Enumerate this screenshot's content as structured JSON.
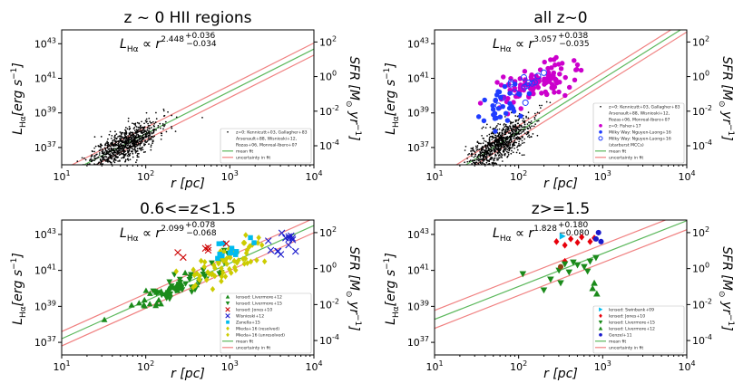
{
  "chart_data": [
    {
      "type": "scatter",
      "title": "z ~ 0 HII regions",
      "relation": {
        "prefix": "L",
        "sub": "Hα",
        "mid": " ∝ r",
        "exp": "2.448",
        "up": "+0.036",
        "down": "−0.034"
      },
      "xlabel": "r [pc]",
      "ylabel": "L_Hα [erg s^-1]",
      "y2label": "SFR [M_⊙ yr^-1]",
      "xlim_log": [
        1,
        4
      ],
      "ylim_log": [
        36,
        43.8
      ],
      "y2_offset_log": -41.1,
      "x_ticks": [
        "10^1",
        "10^2",
        "10^3",
        "10^4"
      ],
      "y_ticks": [
        {
          "v": 37,
          "l": "10^37"
        },
        {
          "v": 39,
          "l": "10^39"
        },
        {
          "v": 41,
          "l": "10^41"
        },
        {
          "v": 43,
          "l": "10^43"
        }
      ],
      "y2_ticks": [
        {
          "v": -4,
          "l": "10^-4"
        },
        {
          "v": -2,
          "l": "10^-2"
        },
        {
          "v": 0,
          "l": "10^0"
        },
        {
          "v": 2,
          "l": "10^2"
        }
      ],
      "fit": {
        "slope": 2.448,
        "intercept": 32.9,
        "band": 0.35
      },
      "clouds": [
        {
          "color": "#000000",
          "marker": "dot",
          "n": 900,
          "x_mu": 1.75,
          "x_sig": 0.2,
          "y_sd": 0.45,
          "seed": 11
        }
      ],
      "legend_location": "lower-right",
      "legend": [
        {
          "label": "z=0: Kennicutt+03, Gallagher+83",
          "color": "#000000",
          "marker": "dot"
        },
        {
          "label": "Arsenault+88, Wisnioski+12,",
          "color": "#000000",
          "marker": "none"
        },
        {
          "label": "Rozas+06, Monreal-Ibero+07",
          "color": "#000000",
          "marker": "none"
        },
        {
          "label": "mean fit",
          "color": "#5cb85c",
          "marker": "line"
        },
        {
          "label": "uncertainty in fit",
          "color": "#f08080",
          "marker": "line"
        }
      ],
      "points": []
    },
    {
      "type": "scatter",
      "title": "all z~0",
      "relation": {
        "prefix": "L",
        "sub": "Hα",
        "mid": " ∝ r",
        "exp": "3.057",
        "up": "+0.038",
        "down": "−0.035"
      },
      "xlabel": "r [pc]",
      "ylabel": "L_Hα [erg s^-1]",
      "y2label": "SFR [M_⊙ yr^-1]",
      "xlim_log": [
        1,
        4
      ],
      "ylim_log": [
        36,
        43.8
      ],
      "y2_offset_log": -41.1,
      "x_ticks": [
        "10^1",
        "10^2",
        "10^3",
        "10^4"
      ],
      "y_ticks": [
        {
          "v": 37,
          "l": "10^37"
        },
        {
          "v": 39,
          "l": "10^39"
        },
        {
          "v": 41,
          "l": "10^41"
        },
        {
          "v": 43,
          "l": "10^43"
        }
      ],
      "y2_ticks": [
        {
          "v": -4,
          "l": "10^-4"
        },
        {
          "v": -2,
          "l": "10^-2"
        },
        {
          "v": 0,
          "l": "10^0"
        },
        {
          "v": 2,
          "l": "10^2"
        }
      ],
      "fit": {
        "slope": 3.057,
        "intercept": 31.8,
        "band": 0.35
      },
      "clouds": [
        {
          "color": "#000000",
          "marker": "dot",
          "n": 900,
          "x_mu": 1.78,
          "x_sig": 0.2,
          "y_sd": 0.5,
          "seed": 21
        },
        {
          "color": "#cc00cc",
          "marker": "circle",
          "n": 110,
          "x_mu": 2.2,
          "x_sig": 0.22,
          "y_fixed": 40.7,
          "y_sd": 0.45,
          "seed": 22
        },
        {
          "color": "#1f3cff",
          "marker": "circle",
          "n": 35,
          "x_mu": 1.85,
          "x_sig": 0.12,
          "y_fixed": 39.4,
          "y_sd": 0.5,
          "seed": 23
        },
        {
          "color": "#1f3cff",
          "marker": "ring",
          "n": 14,
          "x_mu": 2.0,
          "x_sig": 0.15,
          "y_fixed": 40.4,
          "y_sd": 0.4,
          "seed": 24
        }
      ],
      "legend_location": "lower-right",
      "legend": [
        {
          "label": "z=0: Kennicutt+03, Gallagher+83",
          "color": "#000000",
          "marker": "dot"
        },
        {
          "label": "Arsenault+88, Wisnioski+12,",
          "color": "#000000",
          "marker": "none"
        },
        {
          "label": "Rozas+06, Monreal-Ibero+07",
          "color": "#000000",
          "marker": "none"
        },
        {
          "label": "z=0: Fisher+17",
          "color": "#cc00cc",
          "marker": "circle"
        },
        {
          "label": "Milky Way: Nguyen-Luong+16",
          "color": "#1f3cff",
          "marker": "circle"
        },
        {
          "label": "Milky Way: Nguyen-Luong+16",
          "color": "#1f3cff",
          "marker": "ring"
        },
        {
          "label": "(starburst MCCs)",
          "color": "#1f3cff",
          "marker": "none"
        },
        {
          "label": "mean fit",
          "color": "#5cb85c",
          "marker": "line"
        },
        {
          "label": "uncertainty in fit",
          "color": "#f08080",
          "marker": "line"
        }
      ],
      "points": []
    },
    {
      "type": "scatter",
      "title": "0.6<=z<1.5",
      "relation": {
        "prefix": "L",
        "sub": "Hα",
        "mid": " ∝ r",
        "exp": "2.099",
        "up": "+0.078",
        "down": "−0.068"
      },
      "xlabel": "r [pc]",
      "ylabel": "L_Hα [erg s^-1]",
      "y2label": "SFR [M_⊙ yr^-1]",
      "xlim_log": [
        1,
        4
      ],
      "ylim_log": [
        36.3,
        43.8
      ],
      "y2_offset_log": -41.1,
      "x_ticks": [
        "10^1",
        "10^2",
        "10^3",
        "10^4"
      ],
      "y_ticks": [
        {
          "v": 37,
          "l": "10^37"
        },
        {
          "v": 39,
          "l": "10^39"
        },
        {
          "v": 41,
          "l": "10^41"
        },
        {
          "v": 43,
          "l": "10^43"
        }
      ],
      "y2_ticks": [
        {
          "v": -4,
          "l": "10^-4"
        },
        {
          "v": -2,
          "l": "10^-2"
        },
        {
          "v": 0,
          "l": "10^0"
        },
        {
          "v": 2,
          "l": "10^2"
        }
      ],
      "fit": {
        "slope": 2.099,
        "intercept": 35.1,
        "band": 0.4
      },
      "clouds": [
        {
          "color": "#1a8a1a",
          "marker": "tri-down",
          "n": 45,
          "x_mu": 2.45,
          "x_sig": 0.3,
          "y_sd": 0.35,
          "seed": 31
        },
        {
          "color": "#1a8a1a",
          "marker": "tri-up",
          "n": 25,
          "x_mu": 2.2,
          "x_sig": 0.25,
          "y_sd": 0.3,
          "seed": 32
        },
        {
          "color": "#cccc00",
          "marker": "diamond",
          "n": 70,
          "x_mu": 2.95,
          "x_sig": 0.2,
          "y_sd": 0.45,
          "seed": 33
        },
        {
          "color": "#00bbee",
          "marker": "square",
          "n": 12,
          "x_mu": 3.0,
          "x_sig": 0.12,
          "y_fixed": 42.1,
          "y_sd": 0.3,
          "seed": 34
        },
        {
          "color": "#cc0000",
          "marker": "x",
          "n": 6,
          "x_mu": 2.7,
          "x_sig": 0.2,
          "y_fixed": 42.2,
          "y_sd": 0.4,
          "seed": 35
        },
        {
          "color": "#1a1acc",
          "marker": "x",
          "n": 14,
          "x_mu": 3.65,
          "x_sig": 0.12,
          "y_fixed": 42.5,
          "y_sd": 0.35,
          "seed": 36
        }
      ],
      "legend_location": "lower-right",
      "legend": [
        {
          "label": "lensed: Livermore+12",
          "color": "#1a8a1a",
          "marker": "tri-up"
        },
        {
          "label": "lensed: Livermore+15",
          "color": "#1a8a1a",
          "marker": "tri-down"
        },
        {
          "label": "lensed: Jones+10",
          "color": "#cc0000",
          "marker": "x"
        },
        {
          "label": "Wisnioski+12",
          "color": "#1a1acc",
          "marker": "x"
        },
        {
          "label": "Zanella+15",
          "color": "#00bbee",
          "marker": "square"
        },
        {
          "label": "Mieda+16 (resolved)",
          "color": "#cccc00",
          "marker": "diamond"
        },
        {
          "label": "Mieda+16 (unresolved)",
          "color": "#cccc00",
          "marker": "diamond"
        },
        {
          "label": "mean fit",
          "color": "#5cb85c",
          "marker": "line"
        },
        {
          "label": "uncertainty in fit",
          "color": "#f08080",
          "marker": "line"
        }
      ],
      "points": []
    },
    {
      "type": "scatter",
      "title": "z>=1.5",
      "relation": {
        "prefix": "L",
        "sub": "Hα",
        "mid": " ∝ r",
        "exp": "1.828",
        "up": "+0.180",
        "down": "−0.080"
      },
      "xlabel": "r [pc]",
      "ylabel": "L_Hα [erg s^-1]",
      "y2label": "SFR [M_⊙ yr^-1]",
      "xlim_log": [
        1,
        4
      ],
      "ylim_log": [
        36.3,
        43.8
      ],
      "y2_offset_log": -41.1,
      "x_ticks": [
        "10^1",
        "10^2",
        "10^3",
        "10^4"
      ],
      "y_ticks": [
        {
          "v": 37,
          "l": "10^37"
        },
        {
          "v": 39,
          "l": "10^39"
        },
        {
          "v": 41,
          "l": "10^41"
        },
        {
          "v": 43,
          "l": "10^43"
        }
      ],
      "y2_ticks": [
        {
          "v": -4,
          "l": "10^-4"
        },
        {
          "v": -2,
          "l": "10^-2"
        },
        {
          "v": 0,
          "l": "10^0"
        },
        {
          "v": 2,
          "l": "10^2"
        }
      ],
      "fit": {
        "slope": 1.828,
        "intercept": 36.45,
        "band": 0.5
      },
      "clouds": [],
      "legend_location": "lower-right",
      "legend": [
        {
          "label": "lensed: Swinbank+09",
          "color": "#00bbee",
          "marker": "tri-right"
        },
        {
          "label": "lensed: Jones+10",
          "color": "#e8000b",
          "marker": "diamond"
        },
        {
          "label": "lensed: Livermore+15",
          "color": "#1a8a1a",
          "marker": "tri-down"
        },
        {
          "label": "lensed: Livermore+12",
          "color": "#1a8a1a",
          "marker": "tri-up"
        },
        {
          "label": "Genzel+11",
          "color": "#1a1acc",
          "marker": "circle"
        },
        {
          "label": "mean fit",
          "color": "#5cb85c",
          "marker": "line"
        },
        {
          "label": "uncertainty in fit",
          "color": "#f08080",
          "marker": "line"
        }
      ],
      "points": [
        {
          "x": 2.45,
          "y": 42.6,
          "color": "#e8000b",
          "marker": "diamond"
        },
        {
          "x": 2.55,
          "y": 42.4,
          "color": "#e8000b",
          "marker": "diamond"
        },
        {
          "x": 2.62,
          "y": 42.75,
          "color": "#e8000b",
          "marker": "diamond"
        },
        {
          "x": 2.7,
          "y": 42.55,
          "color": "#e8000b",
          "marker": "diamond"
        },
        {
          "x": 2.75,
          "y": 42.85,
          "color": "#e8000b",
          "marker": "diamond"
        },
        {
          "x": 2.85,
          "y": 42.6,
          "color": "#e8000b",
          "marker": "diamond"
        },
        {
          "x": 2.9,
          "y": 42.8,
          "color": "#e8000b",
          "marker": "diamond"
        },
        {
          "x": 2.55,
          "y": 41.5,
          "color": "#e8000b",
          "marker": "diamond"
        },
        {
          "x": 2.52,
          "y": 42.9,
          "color": "#00bbee",
          "marker": "tri-right"
        },
        {
          "x": 2.92,
          "y": 42.75,
          "color": "#1a1acc",
          "marker": "circle"
        },
        {
          "x": 2.98,
          "y": 42.6,
          "color": "#1a1acc",
          "marker": "circle"
        },
        {
          "x": 2.95,
          "y": 43.1,
          "color": "#1a1acc",
          "marker": "circle"
        },
        {
          "x": 2.38,
          "y": 40.5,
          "color": "#1a8a1a",
          "marker": "tri-down"
        },
        {
          "x": 2.48,
          "y": 41.0,
          "color": "#1a8a1a",
          "marker": "tri-down"
        },
        {
          "x": 2.6,
          "y": 40.9,
          "color": "#1a8a1a",
          "marker": "tri-down"
        },
        {
          "x": 2.7,
          "y": 41.3,
          "color": "#1a8a1a",
          "marker": "tri-down"
        },
        {
          "x": 2.78,
          "y": 41.2,
          "color": "#1a8a1a",
          "marker": "tri-down"
        },
        {
          "x": 2.85,
          "y": 41.5,
          "color": "#1a8a1a",
          "marker": "tri-down"
        },
        {
          "x": 2.92,
          "y": 41.7,
          "color": "#1a8a1a",
          "marker": "tri-down"
        },
        {
          "x": 2.55,
          "y": 41.35,
          "color": "#1a8a1a",
          "marker": "tri-down"
        },
        {
          "x": 2.65,
          "y": 41.45,
          "color": "#1a8a1a",
          "marker": "tri-down"
        },
        {
          "x": 2.82,
          "y": 40.95,
          "color": "#1a8a1a",
          "marker": "tri-down"
        },
        {
          "x": 2.3,
          "y": 39.9,
          "color": "#1a8a1a",
          "marker": "tri-down"
        },
        {
          "x": 2.05,
          "y": 40.8,
          "color": "#1a8a1a",
          "marker": "tri-down"
        },
        {
          "x": 2.5,
          "y": 40.3,
          "color": "#1a8a1a",
          "marker": "tri-down"
        },
        {
          "x": 2.88,
          "y": 40.0,
          "color": "#1a8a1a",
          "marker": "tri-up"
        },
        {
          "x": 2.93,
          "y": 39.7,
          "color": "#1a8a1a",
          "marker": "tri-up"
        },
        {
          "x": 2.9,
          "y": 40.3,
          "color": "#1a8a1a",
          "marker": "tri-up"
        },
        {
          "x": 2.5,
          "y": 41.2,
          "color": "#8b4513",
          "marker": "circle"
        }
      ]
    }
  ]
}
